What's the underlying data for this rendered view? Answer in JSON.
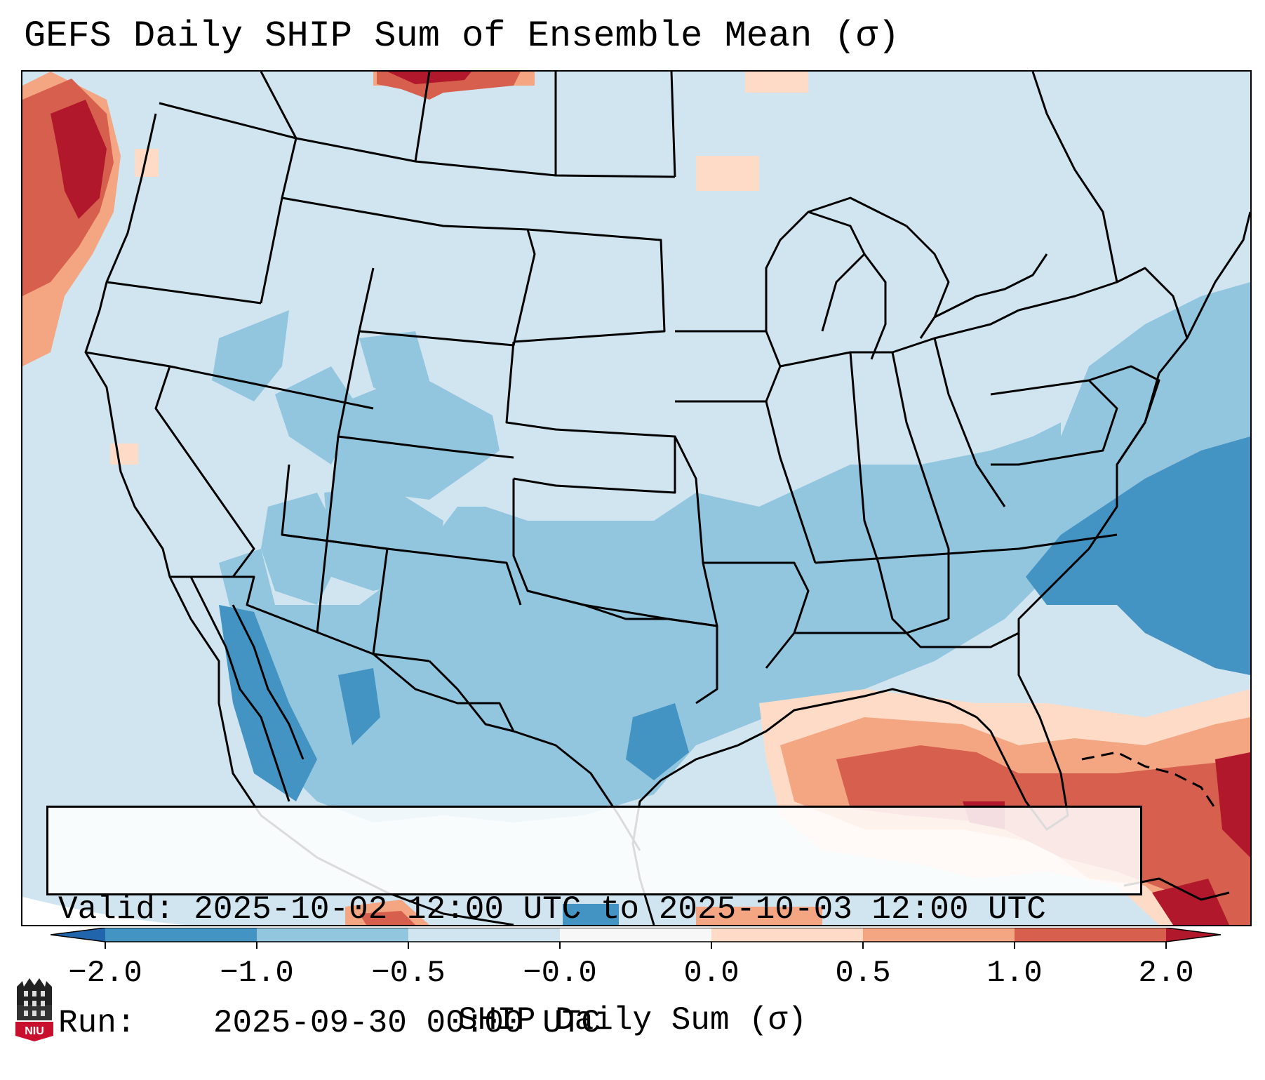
{
  "title": "GEFS Daily SHIP Sum of Ensemble Mean (σ)",
  "info": {
    "valid_label": "Valid:",
    "valid_text": "2025-10-02 12:00 UTC to 2025-10-03 12:00 UTC",
    "run_label": "Run:",
    "run_text": "2025-09-30 00:00 UTC"
  },
  "colorbar": {
    "label": "SHIP Daily Sum (σ)",
    "ticks": [
      "−2.0",
      "−1.0",
      "−0.5",
      "−0.0",
      "0.0",
      "0.5",
      "1.0",
      "2.0"
    ],
    "colors": [
      "#4393c3",
      "#92c5de",
      "#d1e5f0",
      "#f7f7f7",
      "#fddbc7",
      "#f4a582",
      "#d6604d"
    ],
    "under_color": "#2166ac",
    "over_color": "#b2182b"
  },
  "logo": {
    "text": "NIU"
  },
  "colors": {
    "land_background": "#d1e5f0",
    "ocean_offmap": "#ffffff",
    "borders": "#000000"
  }
}
